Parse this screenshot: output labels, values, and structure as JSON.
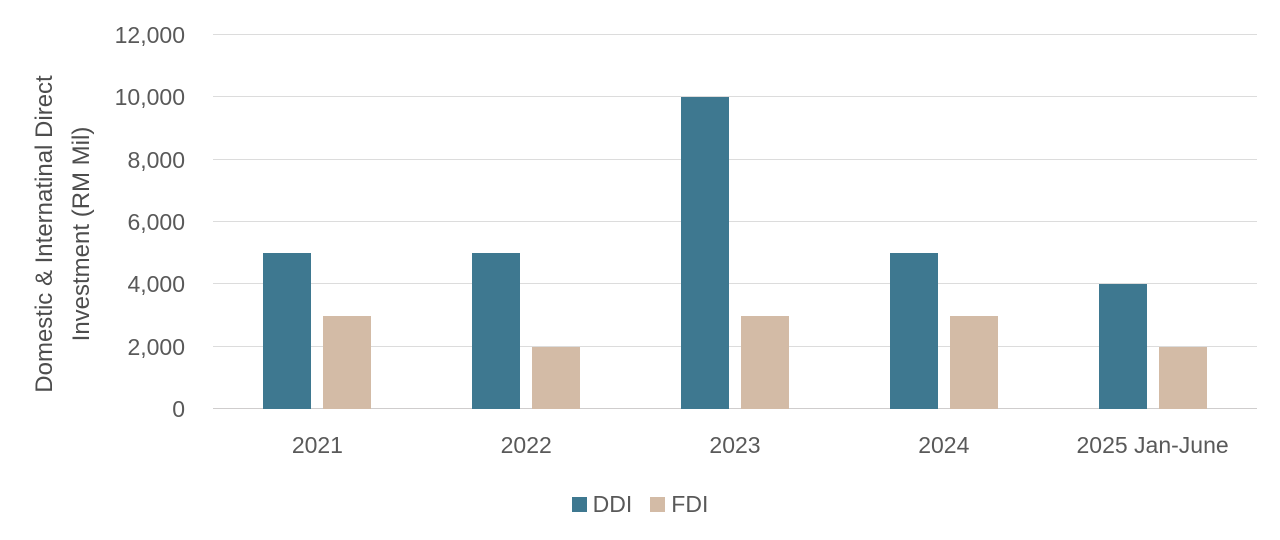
{
  "chart_data": {
    "type": "bar",
    "title": "",
    "categories": [
      "2021",
      "2022",
      "2023",
      "2024",
      "2025 Jan-June"
    ],
    "series": [
      {
        "name": "DDI",
        "color": "#3E7890",
        "values": [
          5000,
          5000,
          10000,
          5000,
          4000
        ]
      },
      {
        "name": "FDI",
        "color": "#D3BBA6",
        "values": [
          3000,
          2000,
          3000,
          3000,
          2000
        ]
      }
    ],
    "xlabel": "",
    "ylabel": "Domestic & Internatinal Direct Investment (RM Mil)",
    "ylabel_lines": [
      "Domestic & Internatinal Direct",
      "Investment (RM Mil)"
    ],
    "ylim": [
      0,
      12000
    ],
    "ytick_step": 2000,
    "ytick_labels": [
      "12,000",
      "10,000",
      "8,000",
      "6,000",
      "4,000",
      "2,000",
      "0"
    ],
    "grid": true,
    "legend_position": "bottom",
    "legend_entries": [
      "DDI",
      "FDI"
    ]
  },
  "colors": {
    "background": "#FFFFFF",
    "gridline": "#DCDCDC",
    "axis_line": "#CFCDCD",
    "tick_text": "#595959",
    "axis_title_text": "#4D4D4D",
    "ddi_bar": "#3E7890",
    "fdi_bar": "#D3BBA6"
  }
}
